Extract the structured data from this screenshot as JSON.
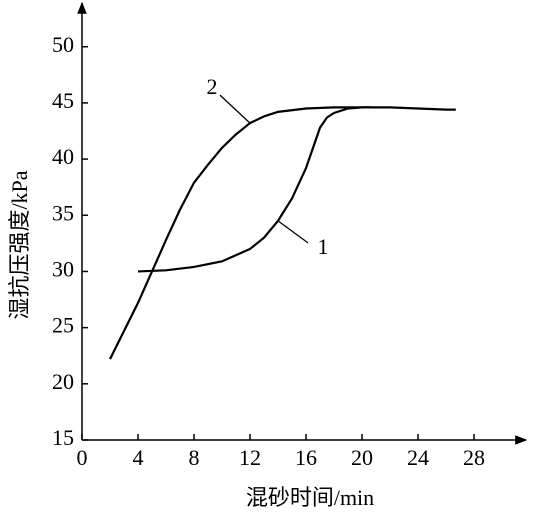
{
  "chart_data": {
    "type": "line",
    "x_label": "混砂时间/min",
    "y_label": "湿抗压强度/kPa",
    "xlim": [
      0,
      31
    ],
    "ylim": [
      15,
      53
    ],
    "xticks": [
      0,
      4,
      8,
      12,
      16,
      20,
      24,
      28
    ],
    "yticks": [
      15,
      20,
      25,
      30,
      35,
      40,
      45,
      50
    ],
    "series": [
      {
        "name": "1",
        "color": "#000000",
        "x": [
          4,
          6,
          8,
          10,
          12,
          13,
          14,
          15,
          16,
          16.5,
          17,
          17.5,
          18,
          19,
          20,
          20.6
        ],
        "values": [
          30,
          30.1,
          30.4,
          30.9,
          32,
          33,
          34.5,
          36.5,
          39.2,
          41,
          42.8,
          43.7,
          44.1,
          44.5,
          44.6,
          44.6
        ]
      },
      {
        "name": "2",
        "color": "#000000",
        "x": [
          2,
          3,
          4,
          5,
          6,
          7,
          8,
          9,
          10,
          11,
          12,
          13,
          14,
          16,
          18,
          20,
          22,
          24,
          26,
          26.7
        ],
        "values": [
          22.2,
          24.7,
          27.2,
          30,
          32.8,
          35.5,
          37.9,
          39.5,
          41,
          42.2,
          43.2,
          43.8,
          44.2,
          44.5,
          44.6,
          44.6,
          44.6,
          44.5,
          44.4,
          44.4
        ]
      }
    ]
  }
}
